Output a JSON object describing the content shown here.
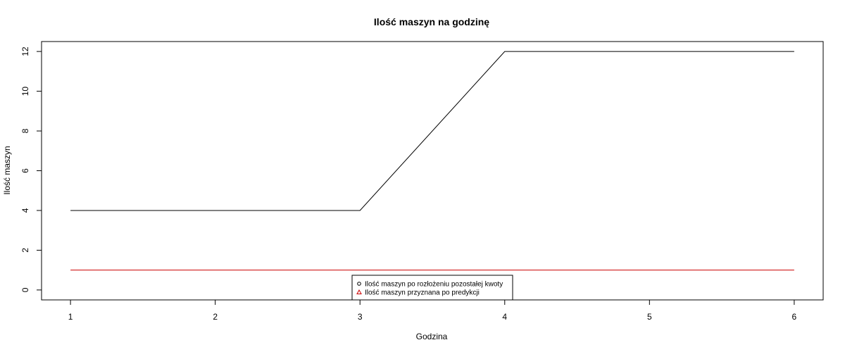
{
  "chart_data": {
    "type": "line",
    "title": "Ilość maszyn na godzinę",
    "xlabel": "Godzina",
    "ylabel": "Ilość maszyn",
    "x": [
      1,
      2,
      3,
      4,
      5,
      6
    ],
    "xlim": [
      0.8,
      6.2
    ],
    "ylim": [
      -0.5,
      12.5
    ],
    "xticks": [
      "1",
      "2",
      "3",
      "4",
      "5",
      "6"
    ],
    "yticks": [
      "0",
      "2",
      "4",
      "6",
      "8",
      "10",
      "12"
    ],
    "grid": false,
    "legend_position": "bottom-center",
    "series": [
      {
        "name": "Ilość maszyn po rozłożeniu pozostałej kwoty",
        "color": "#000000",
        "marker": "circle",
        "values": [
          4,
          4,
          4,
          12,
          12,
          12
        ]
      },
      {
        "name": "Ilość maszyn przyznana po predykcji",
        "color": "#cc0000",
        "marker": "triangle",
        "values": [
          1,
          1,
          1,
          1,
          1,
          1
        ]
      }
    ]
  }
}
